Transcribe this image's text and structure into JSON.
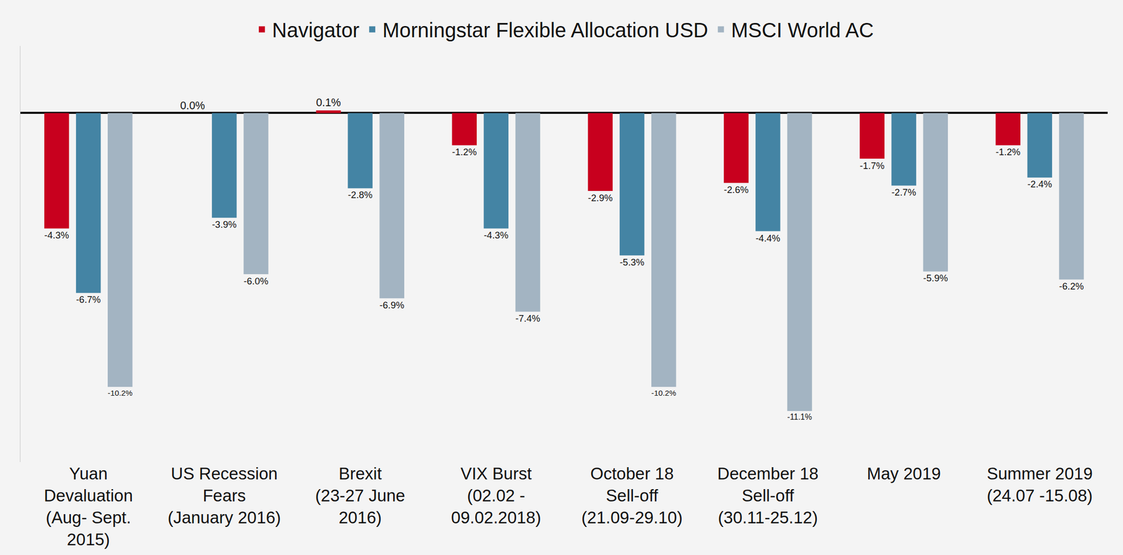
{
  "chart_data": {
    "type": "bar",
    "categories": [
      "Yuan\nDevaluation\n(Aug- Sept.\n2015)",
      "US Recession\nFears\n(January 2016)",
      "Brexit\n(23-27 June\n2016)",
      "VIX Burst\n(02.02 -\n09.02.2018)",
      "October 18\nSell-off\n(21.09-29.10)",
      "December 18\nSell-off\n(30.11-25.12)",
      "May 2019",
      "Summer 2019\n(24.07 -15.08)"
    ],
    "series": [
      {
        "name": "Navigator",
        "color": "#c8001e",
        "values": [
          -4.3,
          0.0,
          0.1,
          -1.2,
          -2.9,
          -2.6,
          -1.7,
          -1.2
        ],
        "value_labels": [
          "-4.3%",
          "0.0%",
          "0.1%",
          "-1.2%",
          "-2.9%",
          "-2.6%",
          "-1.7%",
          "-1.2%"
        ]
      },
      {
        "name": "Morningstar Flexible Allocation USD",
        "color": "#4484a4",
        "values": [
          -6.7,
          -3.9,
          -2.8,
          -4.3,
          -5.3,
          -4.4,
          -2.7,
          -2.4
        ],
        "value_labels": [
          "-6.7%",
          "-3.9%",
          "-2.8%",
          "-4.3%",
          "-5.3%",
          "-4.4%",
          "-2.7%",
          "-2.4%"
        ]
      },
      {
        "name": "MSCI World AC",
        "color": "#a3b4c2",
        "values": [
          -10.2,
          -6.0,
          -6.9,
          -7.4,
          -10.2,
          -11.1,
          -5.9,
          -6.2
        ],
        "value_labels": [
          "-10.2%",
          "-6.0%",
          "-6.9%",
          "-7.4%",
          "-10.2%",
          "-11.1%",
          "-5.9%",
          "-6.2%"
        ]
      }
    ],
    "ylim": [
      -13,
      2.5
    ],
    "yticks": [
      0
    ],
    "grid": false,
    "legend": "top",
    "data_labels": true,
    "tick_labels": "x"
  }
}
